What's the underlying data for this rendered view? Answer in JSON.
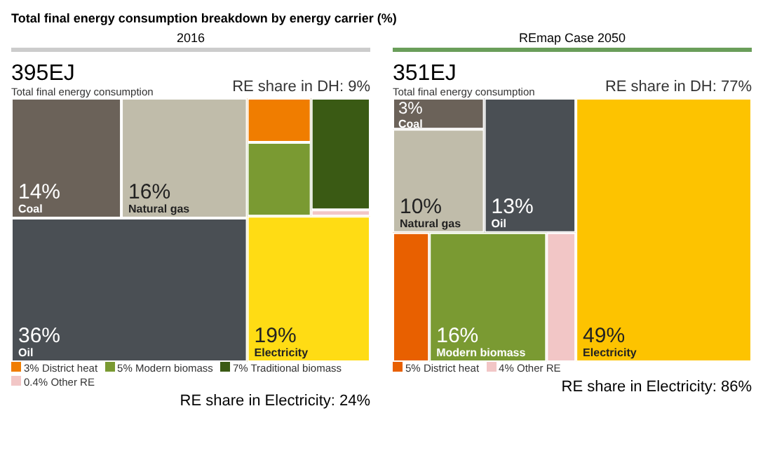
{
  "chart_data": [
    {
      "type": "other",
      "title": "Total final energy consumption breakdown by energy carrier (%)",
      "subtitle": "2016",
      "categories": [
        "Coal",
        "Natural gas",
        "Oil",
        "District heat",
        "Modern biomass",
        "Traditional biomass",
        "Other RE",
        "Electricity"
      ],
      "values": [
        14,
        16,
        36,
        3,
        5,
        7,
        0.4,
        19
      ],
      "value_labels": [
        "14%",
        "16%",
        "36%",
        "3%",
        "5%",
        "7%",
        "0.4%",
        "19%"
      ],
      "colors": [
        "#6b6259",
        "#c0bcaa",
        "#4a4f54",
        "#f07d00",
        "#7a9a32",
        "#3a5a14",
        "#f2c6c6",
        "#ffdc14"
      ],
      "annotations": [
        "395EJ",
        "Total final energy consumption",
        "RE share in DH: 9%",
        "RE share in Electricity: 24%"
      ]
    },
    {
      "type": "other",
      "subtitle": "REmap Case 2050",
      "categories": [
        "Coal",
        "Natural gas",
        "Oil",
        "District heat",
        "Modern biomass",
        "Other RE",
        "Electricity"
      ],
      "values": [
        3,
        10,
        13,
        5,
        16,
        4,
        49
      ],
      "value_labels": [
        "3%",
        "10%",
        "13%",
        "5%",
        "16%",
        "4%",
        "49%"
      ],
      "colors": [
        "#6b6259",
        "#c0bcaa",
        "#4a4f54",
        "#e86000",
        "#7a9a32",
        "#f2c6c6",
        "#fdc300"
      ],
      "annotations": [
        "351EJ",
        "Total final energy consumption",
        "RE share in DH: 77%",
        "RE share in Electricity: 86%"
      ]
    }
  ]
}
